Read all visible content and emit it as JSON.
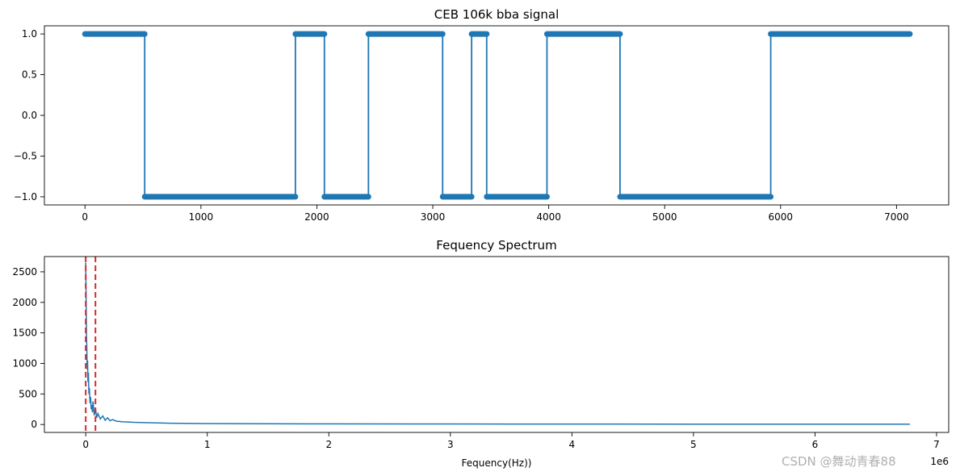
{
  "watermark": "CSDN @舞动青春88",
  "chart_data": [
    {
      "type": "line",
      "title": "CEB 106k bba signal",
      "xlabel": "",
      "ylabel": "",
      "xlim": [
        -350,
        7450
      ],
      "ylim": [
        -1.1,
        1.1
      ],
      "x_ticks": [
        0,
        1000,
        2000,
        3000,
        4000,
        5000,
        6000,
        7000
      ],
      "y_ticks": [
        1.0,
        0.5,
        0.0,
        -0.5,
        -1.0
      ],
      "y_tick_labels": [
        "1.0",
        "0.5",
        "0.0",
        "−0.5",
        "−1.0"
      ],
      "grid": false,
      "color": "#1f77b4",
      "marker": "dot",
      "series": [
        {
          "segments": [
            {
              "x_start": 0,
              "x_end": 515,
              "y": 1
            },
            {
              "x_start": 515,
              "x_end": 1815,
              "y": -1
            },
            {
              "x_start": 1815,
              "x_end": 2065,
              "y": 1
            },
            {
              "x_start": 2065,
              "x_end": 2445,
              "y": -1
            },
            {
              "x_start": 2445,
              "x_end": 3085,
              "y": 1
            },
            {
              "x_start": 3085,
              "x_end": 3335,
              "y": -1
            },
            {
              "x_start": 3335,
              "x_end": 3465,
              "y": 1
            },
            {
              "x_start": 3465,
              "x_end": 3985,
              "y": -1
            },
            {
              "x_start": 3985,
              "x_end": 4615,
              "y": 1
            },
            {
              "x_start": 4615,
              "x_end": 5915,
              "y": -1
            },
            {
              "x_start": 5915,
              "x_end": 7115,
              "y": 1
            }
          ]
        }
      ]
    },
    {
      "type": "line",
      "title": "Fequency Spectrum",
      "xlabel": "Fequency(Hz))",
      "ylabel": "",
      "x_offset_label": "1e6",
      "xlim": [
        -0.34,
        7.1
      ],
      "ylim": [
        -130,
        2750
      ],
      "x_ticks": [
        0,
        1,
        2,
        3,
        4,
        5,
        6,
        7
      ],
      "y_ticks": [
        0,
        500,
        1000,
        1500,
        2000,
        2500
      ],
      "grid": false,
      "color": "#1f77b4",
      "series": [
        {
          "x": [
            0.0,
            0.003,
            0.006,
            0.009,
            0.012,
            0.015,
            0.018,
            0.022,
            0.026,
            0.03,
            0.035,
            0.04,
            0.045,
            0.05,
            0.055,
            0.06,
            0.07,
            0.08,
            0.09,
            0.1,
            0.12,
            0.14,
            0.16,
            0.18,
            0.2,
            0.22,
            0.25,
            0.3,
            0.35,
            0.4,
            0.5,
            0.6,
            0.7,
            0.8,
            1.0,
            1.5,
            2.0,
            3.0,
            4.0,
            5.0,
            6.0,
            6.78
          ],
          "y": [
            2650,
            2100,
            1500,
            1250,
            900,
            1050,
            700,
            850,
            500,
            600,
            350,
            450,
            250,
            320,
            200,
            380,
            150,
            260,
            110,
            180,
            90,
            140,
            70,
            110,
            60,
            80,
            55,
            45,
            40,
            35,
            30,
            25,
            20,
            18,
            15,
            12,
            10,
            8,
            7,
            6,
            5,
            5
          ]
        }
      ],
      "vlines": [
        {
          "x": 0.0,
          "color": "#d62728",
          "style": "dashed"
        },
        {
          "x": 0.08,
          "color": "#d62728",
          "style": "dashed"
        }
      ]
    }
  ]
}
